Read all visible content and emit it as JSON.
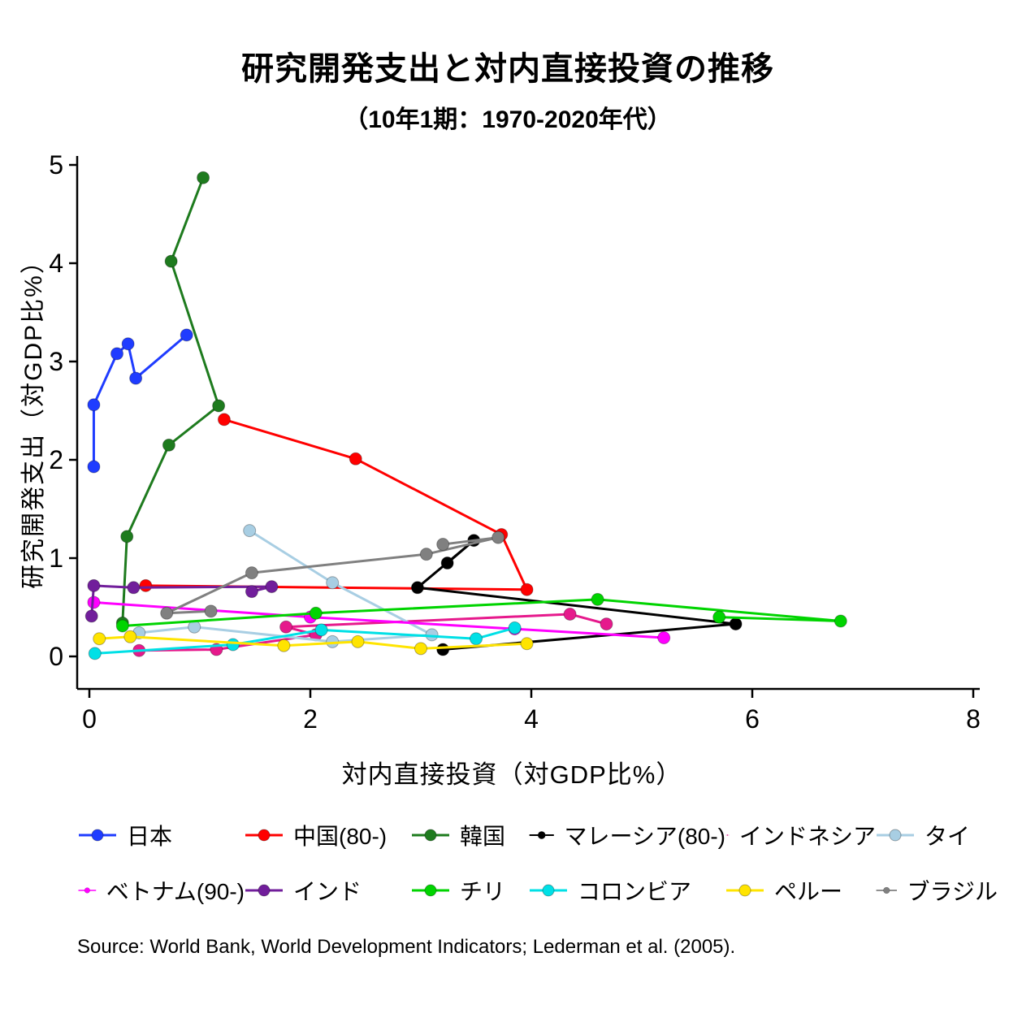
{
  "title": "研究開発支出と対内直接投資の推移",
  "subtitle": "（10年1期：1970-2020年代）",
  "source": "Source: World Bank, World Development Indicators; Lederman et al. (2005).",
  "chart_data": {
    "type": "line",
    "title": "研究開発支出と対内直接投資の推移",
    "subtitle": "（10年1期：1970-2020年代）",
    "xlabel": "対内直接投資（対GDP比%）",
    "ylabel": "研究開発支出（対GDP比%）",
    "xlim": [
      0,
      8
    ],
    "ylim": [
      0,
      5
    ],
    "x_ticks": [
      0,
      2,
      4,
      6,
      8
    ],
    "y_ticks": [
      0,
      1,
      2,
      3,
      4,
      5
    ],
    "grid": false,
    "legend_position": "bottom",
    "series": [
      {
        "key": "japan",
        "name": "日本",
        "color": "#1f3cff",
        "points": [
          [
            0.04,
            1.93
          ],
          [
            0.04,
            2.56
          ],
          [
            0.25,
            3.08
          ],
          [
            0.35,
            3.18
          ],
          [
            0.42,
            2.83
          ],
          [
            0.88,
            3.27
          ]
        ]
      },
      {
        "key": "china",
        "name": "中国(80-)",
        "color": "#ff0000",
        "points": [
          [
            0.51,
            0.72
          ],
          [
            3.96,
            0.68
          ],
          [
            3.73,
            1.24
          ],
          [
            2.41,
            2.01
          ],
          [
            1.22,
            2.41
          ]
        ]
      },
      {
        "key": "korea",
        "name": "韓国",
        "color": "#1e7b1e",
        "points": [
          [
            0.3,
            0.34
          ],
          [
            0.34,
            1.22
          ],
          [
            0.72,
            2.15
          ],
          [
            1.17,
            2.55
          ],
          [
            0.74,
            4.02
          ],
          [
            1.03,
            4.87
          ]
        ]
      },
      {
        "key": "malaysia",
        "name": "マレーシア(80-)",
        "color": "#000000",
        "points": [
          [
            3.2,
            0.07
          ],
          [
            5.85,
            0.33
          ],
          [
            2.97,
            0.7
          ],
          [
            3.48,
            1.18
          ],
          [
            3.24,
            0.95
          ]
        ]
      },
      {
        "key": "indonesia",
        "name": "インドネシア",
        "color": "#e6198c",
        "points": [
          [
            0.45,
            0.06
          ],
          [
            1.15,
            0.07
          ],
          [
            2.05,
            0.22
          ],
          [
            1.78,
            0.3
          ],
          [
            4.35,
            0.43
          ],
          [
            4.68,
            0.33
          ]
        ]
      },
      {
        "key": "thailand",
        "name": "タイ",
        "color": "#a8cee3",
        "points": [
          [
            0.45,
            0.24
          ],
          [
            0.95,
            0.3
          ],
          [
            2.2,
            0.15
          ],
          [
            3.1,
            0.22
          ],
          [
            2.2,
            0.75
          ],
          [
            1.45,
            1.28
          ]
        ]
      },
      {
        "key": "vietnam",
        "name": "ベトナム(90-)",
        "color": "#ff00ff",
        "points": [
          [
            0.04,
            0.55
          ],
          [
            2.0,
            0.4
          ],
          [
            3.85,
            0.28
          ],
          [
            5.2,
            0.19
          ]
        ]
      },
      {
        "key": "india",
        "name": "インド",
        "color": "#711e9b",
        "points": [
          [
            0.02,
            0.41
          ],
          [
            0.04,
            0.72
          ],
          [
            0.4,
            0.7
          ],
          [
            1.65,
            0.71
          ],
          [
            1.47,
            0.66
          ]
        ]
      },
      {
        "key": "chile",
        "name": "チリ",
        "color": "#00d400",
        "points": [
          [
            0.3,
            0.31
          ],
          [
            2.05,
            0.44
          ],
          [
            4.6,
            0.58
          ],
          [
            6.8,
            0.36
          ],
          [
            5.7,
            0.4
          ]
        ]
      },
      {
        "key": "colombia",
        "name": "コロンビア",
        "color": "#00e0e6",
        "points": [
          [
            0.05,
            0.03
          ],
          [
            1.3,
            0.12
          ],
          [
            2.1,
            0.27
          ],
          [
            3.5,
            0.18
          ],
          [
            3.85,
            0.29
          ]
        ]
      },
      {
        "key": "peru",
        "name": "ペルー",
        "color": "#ffe400",
        "points": [
          [
            0.09,
            0.18
          ],
          [
            0.37,
            0.2
          ],
          [
            1.76,
            0.11
          ],
          [
            2.43,
            0.15
          ],
          [
            3.0,
            0.08
          ],
          [
            3.96,
            0.13
          ]
        ]
      },
      {
        "key": "brazil",
        "name": "ブラジル",
        "color": "#808080",
        "points": [
          [
            1.1,
            0.46
          ],
          [
            0.7,
            0.44
          ],
          [
            1.47,
            0.85
          ],
          [
            3.05,
            1.04
          ],
          [
            3.7,
            1.21
          ],
          [
            3.2,
            1.14
          ]
        ]
      }
    ]
  }
}
